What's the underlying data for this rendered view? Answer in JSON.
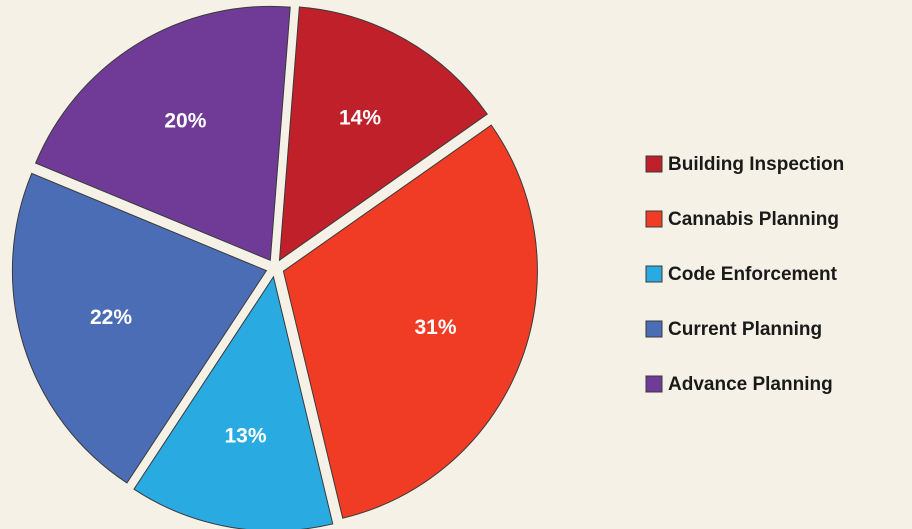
{
  "chart_data": {
    "type": "pie",
    "categories": [
      "Building Inspection",
      "Cannabis Planning",
      "Code Enforcement",
      "Current Planning",
      "Advance Planning"
    ],
    "values": [
      14,
      31,
      13,
      22,
      20
    ],
    "value_labels": [
      "14%",
      "31%",
      "13%",
      "22%",
      "20%"
    ],
    "colors": [
      "#c0202a",
      "#f03c24",
      "#29abe2",
      "#4a6db5",
      "#6f3b96"
    ],
    "legend": "right"
  }
}
